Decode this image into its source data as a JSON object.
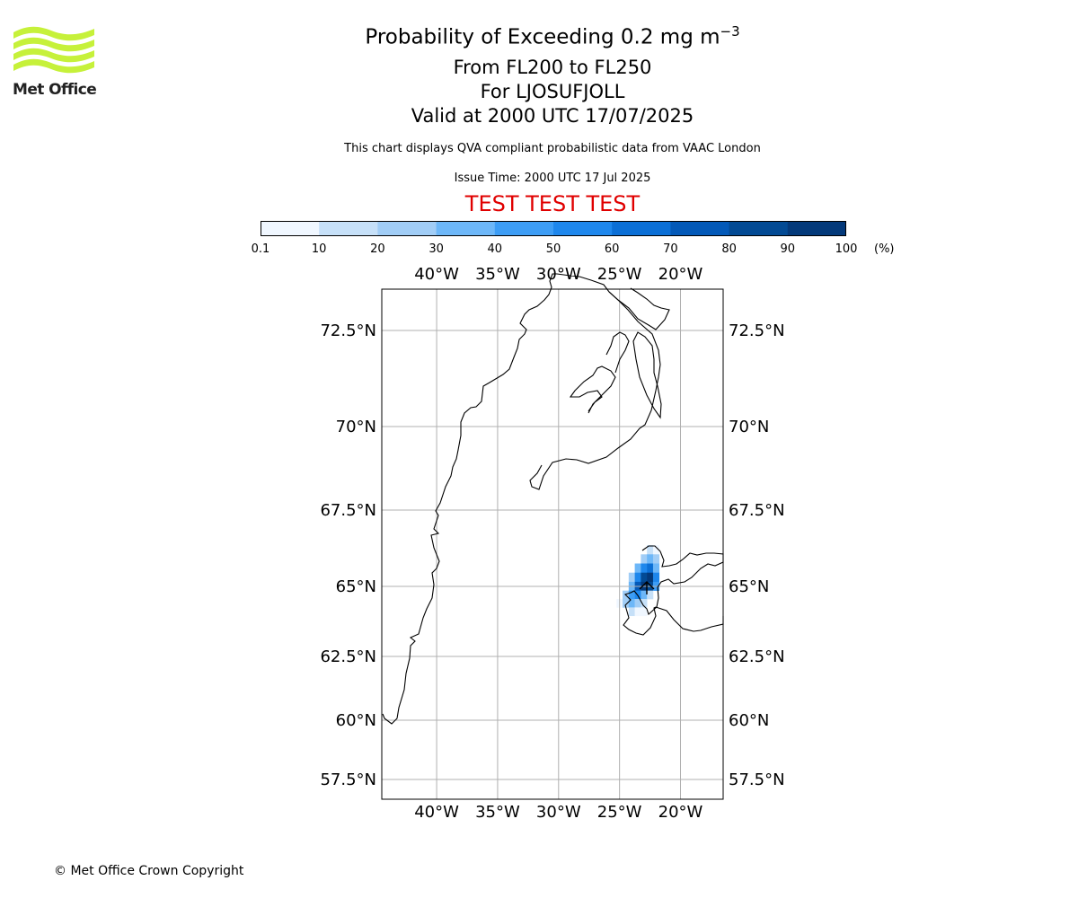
{
  "header": {
    "logo_text": "Met Office",
    "title_main": "Probability of Exceeding 0.2 mg m",
    "title_exponent": "−3",
    "flight_levels": "From FL200 to FL250",
    "location": "For LJOSUFJOLL",
    "valid_time": "Valid at 2000 UTC 17/07/2025",
    "info": "This chart displays QVA compliant probabilistic data from VAAC London",
    "issue_time": "Issue Time: 2000 UTC 17 Jul 2025",
    "test_banner": "TEST TEST TEST"
  },
  "colorbar": {
    "ticks": [
      "0.1",
      "10",
      "20",
      "30",
      "40",
      "50",
      "60",
      "70",
      "80",
      "90",
      "100"
    ],
    "units": "(%)",
    "colors": [
      "#f0f7ff",
      "#c6e0f8",
      "#a1cdf6",
      "#6db7f8",
      "#3d9df5",
      "#1e87ec",
      "#0b6fd6",
      "#0359b8",
      "#024a94",
      "#03397a"
    ]
  },
  "map": {
    "lon_labels": [
      "40°W",
      "35°W",
      "30°W",
      "25°W",
      "20°W"
    ],
    "lon_values": [
      -40,
      -35,
      -30,
      -25,
      -20
    ],
    "lat_labels": [
      "72.5°N",
      "70°N",
      "67.5°N",
      "65°N",
      "62.5°N",
      "60°N",
      "57.5°N"
    ],
    "lat_values": [
      72.5,
      70,
      67.5,
      65,
      62.5,
      60,
      57.5
    ],
    "lon_range": [
      -44.5,
      -16.5
    ],
    "lat_range": [
      57,
      73.8
    ],
    "gridlines": true,
    "plume_cells": [
      {
        "lon": -22.5,
        "lat": 66.2,
        "p": 15
      },
      {
        "lon": -22.0,
        "lat": 66.2,
        "p": 5
      },
      {
        "lon": -23.0,
        "lat": 65.9,
        "p": 25
      },
      {
        "lon": -22.5,
        "lat": 65.9,
        "p": 35
      },
      {
        "lon": -22.0,
        "lat": 65.9,
        "p": 20
      },
      {
        "lon": -23.5,
        "lat": 65.6,
        "p": 30
      },
      {
        "lon": -23.0,
        "lat": 65.6,
        "p": 55
      },
      {
        "lon": -22.5,
        "lat": 65.6,
        "p": 60
      },
      {
        "lon": -22.0,
        "lat": 65.6,
        "p": 35
      },
      {
        "lon": -24.0,
        "lat": 65.3,
        "p": 25
      },
      {
        "lon": -23.5,
        "lat": 65.3,
        "p": 55
      },
      {
        "lon": -23.0,
        "lat": 65.3,
        "p": 85
      },
      {
        "lon": -22.5,
        "lat": 65.3,
        "p": 95
      },
      {
        "lon": -22.0,
        "lat": 65.3,
        "p": 55
      },
      {
        "lon": -24.0,
        "lat": 65.0,
        "p": 35
      },
      {
        "lon": -23.5,
        "lat": 65.0,
        "p": 75
      },
      {
        "lon": -23.0,
        "lat": 65.0,
        "p": 95
      },
      {
        "lon": -22.5,
        "lat": 65.0,
        "p": 85
      },
      {
        "lon": -22.0,
        "lat": 65.0,
        "p": 45
      },
      {
        "lon": -24.5,
        "lat": 64.7,
        "p": 25
      },
      {
        "lon": -24.0,
        "lat": 64.7,
        "p": 45
      },
      {
        "lon": -23.5,
        "lat": 64.7,
        "p": 55
      },
      {
        "lon": -23.0,
        "lat": 64.7,
        "p": 35
      },
      {
        "lon": -22.5,
        "lat": 64.7,
        "p": 15
      },
      {
        "lon": -25.0,
        "lat": 64.4,
        "p": 5
      },
      {
        "lon": -24.5,
        "lat": 64.4,
        "p": 25
      },
      {
        "lon": -24.0,
        "lat": 64.4,
        "p": 35
      },
      {
        "lon": -23.5,
        "lat": 64.4,
        "p": 20
      },
      {
        "lon": -23.0,
        "lat": 64.4,
        "p": 10
      },
      {
        "lon": -24.0,
        "lat": 64.1,
        "p": 10
      },
      {
        "lon": -23.5,
        "lat": 64.1,
        "p": 5
      },
      {
        "lon": -23.0,
        "lat": 64.1,
        "p": 5
      }
    ]
  },
  "footer": {
    "copyright": "© Met Office Crown Copyright"
  }
}
